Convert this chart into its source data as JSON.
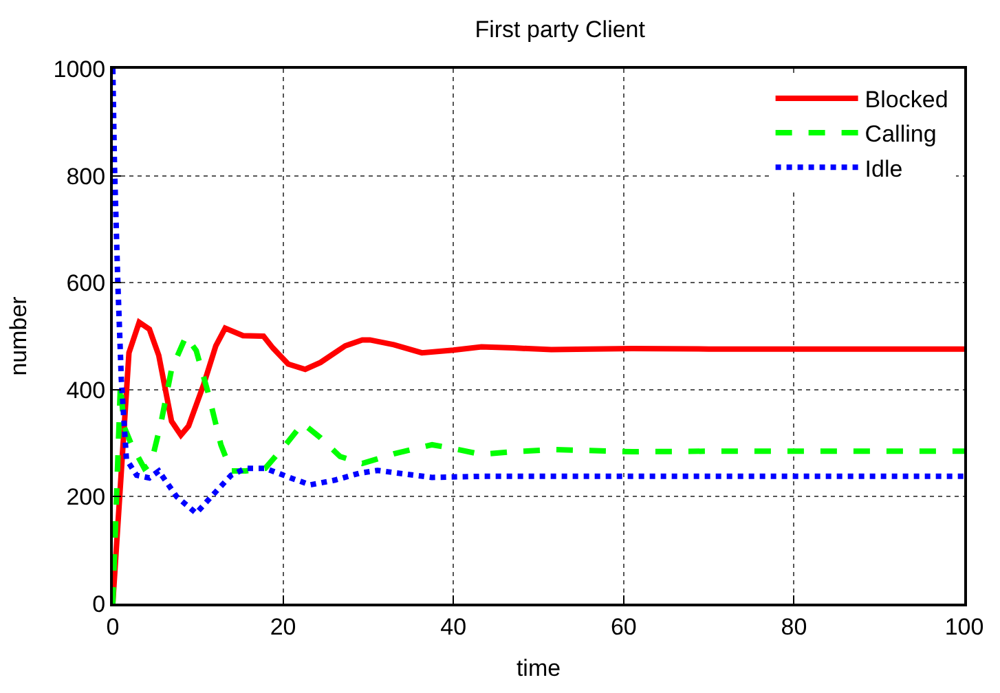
{
  "chart_data": {
    "type": "line",
    "title": "First party Client",
    "xlabel": "time",
    "ylabel": "number",
    "xlim": [
      0,
      100
    ],
    "ylim": [
      0,
      1000
    ],
    "xticks": [
      0,
      20,
      40,
      60,
      80,
      100
    ],
    "yticks": [
      0,
      200,
      400,
      600,
      800,
      1000
    ],
    "grid": true,
    "legend": "top right",
    "marker": "none",
    "series": [
      {
        "name": "Blocked",
        "color": "#ff0000",
        "line_style": "solid",
        "x": [
          0,
          1.9,
          3.1,
          4.3,
          5.4,
          6.9,
          8.0,
          8.9,
          10.7,
          12.1,
          13.2,
          15.3,
          17.7,
          18.8,
          20.6,
          22.6,
          24.4,
          27.3,
          29.3,
          30.2,
          33,
          36.3,
          40,
          43.3,
          47,
          51.5,
          56,
          61,
          70,
          80,
          90,
          100
        ],
        "values": [
          0,
          469,
          526,
          513,
          464,
          341,
          315,
          332,
          411,
          482,
          515,
          501,
          500,
          478,
          448,
          438,
          451,
          482,
          493,
          493,
          484,
          469,
          474,
          480,
          478,
          475,
          476,
          477,
          476,
          476,
          476,
          476
        ]
      },
      {
        "name": "Calling",
        "color": "#00ff00",
        "line_style": "dashed",
        "x": [
          0,
          0.9,
          1.3,
          2.2,
          3.7,
          4.5,
          5.7,
          6.9,
          8.6,
          9.8,
          11.2,
          12.7,
          13.9,
          15.6,
          17.9,
          20.3,
          22.3,
          24.4,
          26.7,
          29.3,
          33,
          37.5,
          40,
          43.3,
          47,
          52,
          61,
          70,
          80,
          90,
          100
        ],
        "values": [
          0,
          411,
          332,
          297,
          253,
          262,
          341,
          438,
          500,
          473,
          394,
          297,
          248,
          248,
          253,
          297,
          337,
          310,
          275,
          262,
          280,
          297,
          290,
          279,
          284,
          288,
          284,
          285,
          285,
          285,
          285
        ]
      },
      {
        "name": "Idle",
        "color": "#0000ff",
        "line_style": "dotted",
        "x": [
          0,
          0.2,
          0.6,
          1.0,
          1.6,
          2.8,
          4.3,
          5.4,
          7.5,
          9.8,
          11.8,
          13.9,
          15.6,
          17.9,
          20.9,
          23.2,
          26.1,
          29,
          31.1,
          34,
          37.5,
          43.3,
          50,
          60,
          70,
          80,
          90,
          100
        ],
        "values": [
          1000,
          817,
          596,
          420,
          270,
          240,
          235,
          248,
          200,
          169,
          204,
          240,
          253,
          253,
          235,
          222,
          231,
          244,
          249,
          243,
          236,
          238,
          238,
          238,
          238,
          238,
          238,
          238
        ]
      }
    ]
  }
}
